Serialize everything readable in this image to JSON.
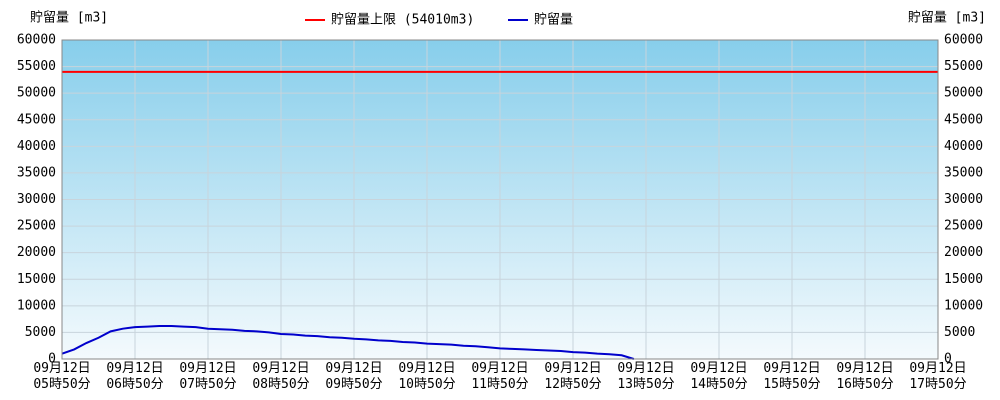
{
  "chart_data": {
    "type": "line",
    "y_label": "貯留量 [m3]",
    "y2_label": "貯留量 [m3]",
    "categories": [
      "09月12日\n05時50分",
      null,
      null,
      null,
      null,
      null,
      "09月12日\n06時50分",
      null,
      null,
      null,
      null,
      null,
      "09月12日\n07時50分",
      null,
      null,
      null,
      null,
      null,
      "09月12日\n08時50分",
      null,
      null,
      null,
      null,
      null,
      "09月12日\n09時50分",
      null,
      null,
      null,
      null,
      null,
      "09月12日\n10時50分",
      null,
      null,
      null,
      null,
      null,
      "09月12日\n11時50分",
      null,
      null,
      null,
      null,
      null,
      "09月12日\n12時50分",
      null,
      null,
      null,
      null,
      null,
      "09月12日\n13時50分",
      null,
      null,
      null,
      null,
      null,
      "09月12日\n14時50分",
      null,
      null,
      null,
      null,
      null,
      "09月12日\n15時50分",
      null,
      null,
      null,
      null,
      null,
      "09月12日\n16時50分",
      null,
      null,
      null,
      null,
      null,
      "09月12日\n17時50分"
    ],
    "series": [
      {
        "name": "貯留量上限 (54010m3)",
        "color": "#ff0000",
        "values": [
          54010,
          54010,
          54010,
          54010,
          54010,
          54010,
          54010,
          54010,
          54010,
          54010,
          54010,
          54010,
          54010,
          54010,
          54010,
          54010,
          54010,
          54010,
          54010,
          54010,
          54010,
          54010,
          54010,
          54010,
          54010,
          54010,
          54010,
          54010,
          54010,
          54010,
          54010,
          54010,
          54010,
          54010,
          54010,
          54010,
          54010,
          54010,
          54010,
          54010,
          54010,
          54010,
          54010,
          54010,
          54010,
          54010,
          54010,
          54010,
          54010,
          54010,
          54010,
          54010,
          54010,
          54010,
          54010,
          54010,
          54010,
          54010,
          54010,
          54010,
          54010,
          54010,
          54010,
          54010,
          54010,
          54010,
          54010,
          54010,
          54010,
          54010,
          54010,
          54010,
          54010
        ]
      },
      {
        "name": "貯留量",
        "color": "#0000cc",
        "values": [
          1000,
          1800,
          3000,
          4000,
          5200,
          5700,
          6000,
          6100,
          6200,
          6200,
          6100,
          6000,
          5700,
          5600,
          5500,
          5300,
          5200,
          5000,
          4700,
          4600,
          4400,
          4300,
          4100,
          4000,
          3800,
          3700,
          3500,
          3400,
          3200,
          3100,
          2900,
          2800,
          2700,
          2500,
          2400,
          2200,
          2000,
          1900,
          1800,
          1700,
          1600,
          1500,
          1300,
          1200,
          1000,
          900,
          700,
          0,
          null,
          null,
          null,
          null,
          null,
          null,
          null,
          null,
          null,
          null,
          null,
          null,
          null,
          null,
          null,
          null,
          null,
          null,
          null,
          null,
          null,
          null,
          null,
          null,
          null
        ]
      }
    ],
    "ylim": [
      0,
      60000
    ],
    "yticks": [
      0,
      5000,
      10000,
      15000,
      20000,
      25000,
      30000,
      35000,
      40000,
      45000,
      50000,
      55000,
      60000
    ],
    "y2lim": [
      0,
      60000
    ],
    "y2ticks": [
      0,
      5000,
      10000,
      15000,
      20000,
      25000,
      30000,
      35000,
      40000,
      45000,
      50000,
      55000,
      60000
    ],
    "grid": true
  }
}
